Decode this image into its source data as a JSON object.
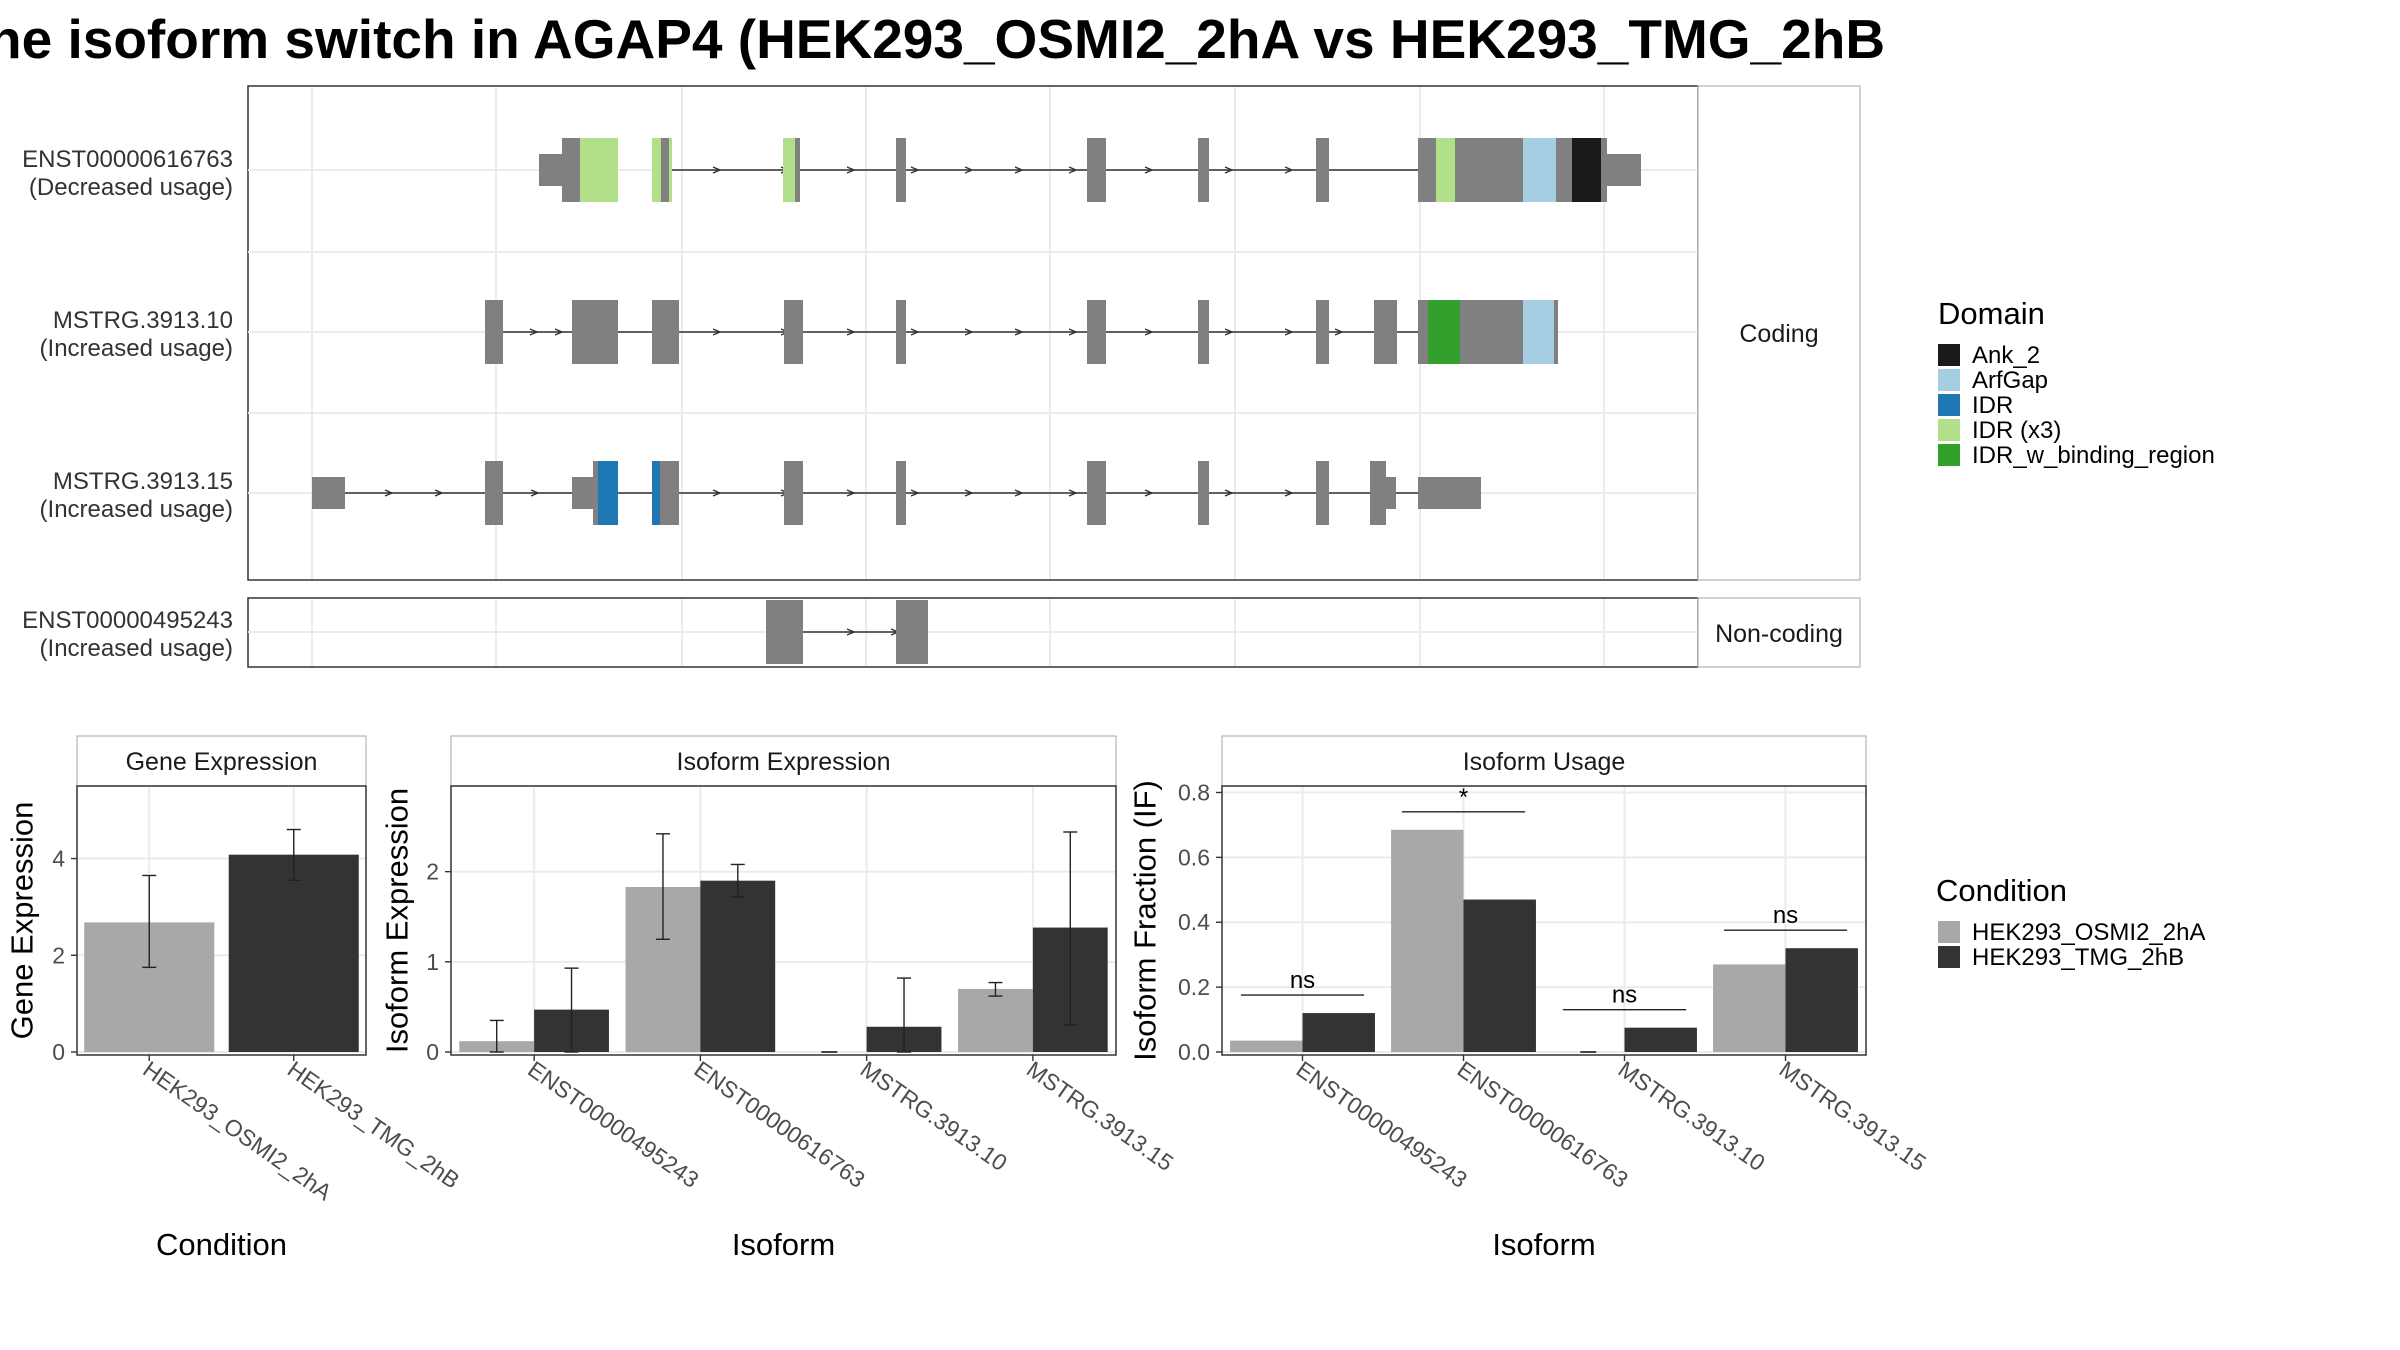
{
  "title": "he isoform switch in AGAP4 (HEK293_OSMI2_2hA vs HEK293_TMG_2hB",
  "colors": {
    "exon": "#808080",
    "Ank_2": "#1a1a1a",
    "ArfGap": "#a6cee3",
    "IDR": "#1f78b4",
    "IDR (x3)": "#b2df8a",
    "IDR_w_binding_region": "#33a02c",
    "HEK293_OSMI2_2hA": "#a8a8a8",
    "HEK293_TMG_2hB": "#333333"
  },
  "structure": {
    "facets": [
      "Coding",
      "Non-coding"
    ],
    "isoforms": [
      {
        "id": "ENST00000616763",
        "usage": "(Decreased usage)",
        "facet": "Coding"
      },
      {
        "id": "MSTRG.3913.10",
        "usage": "(Increased usage)",
        "facet": "Coding"
      },
      {
        "id": "MSTRG.3913.15",
        "usage": "(Increased usage)",
        "facet": "Coding"
      },
      {
        "id": "ENST00000495243",
        "usage": "(Increased usage)",
        "facet": "Non-coding"
      }
    ]
  },
  "legend_domain": {
    "title": "Domain",
    "items": [
      "Ank_2",
      "ArfGap",
      "IDR",
      "IDR (x3)",
      "IDR_w_binding_region"
    ]
  },
  "legend_condition": {
    "title": "Condition",
    "items": [
      "HEK293_OSMI2_2hA",
      "HEK293_TMG_2hB"
    ]
  },
  "chart_data": [
    {
      "type": "bar",
      "title": "Gene Expression",
      "xlabel": "Condition",
      "ylabel": "Gene Expression",
      "categories": [
        "HEK293_OSMI2_2hA",
        "HEK293_TMG_2hB"
      ],
      "values": [
        2.68,
        4.08
      ],
      "error_low": [
        1.75,
        3.55
      ],
      "error_high": [
        3.65,
        4.6
      ],
      "yticks": [
        0,
        2,
        4
      ],
      "ylim": [
        0,
        5.5
      ]
    },
    {
      "type": "bar",
      "title": "Isoform Expression",
      "xlabel": "Isoform",
      "ylabel": "Isoform Expression",
      "categories": [
        "ENST00000495243",
        "ENST00000616763",
        "MSTRG.3913.10",
        "MSTRG.3913.15"
      ],
      "series": [
        {
          "name": "HEK293_OSMI2_2hA",
          "values": [
            0.12,
            1.83,
            0.0,
            0.7
          ],
          "error_low": [
            0.0,
            1.25,
            null,
            0.62
          ],
          "error_high": [
            0.35,
            2.42,
            null,
            0.77
          ]
        },
        {
          "name": "HEK293_TMG_2hB",
          "values": [
            0.47,
            1.9,
            0.28,
            1.38
          ],
          "error_low": [
            0.0,
            1.72,
            0.0,
            0.3
          ],
          "error_high": [
            0.93,
            2.08,
            0.82,
            2.44
          ]
        }
      ],
      "yticks": [
        0,
        1,
        2
      ],
      "ylim": [
        0,
        2.95
      ]
    },
    {
      "type": "bar",
      "title": "Isoform Usage",
      "xlabel": "Isoform",
      "ylabel": "Isoform Fraction (IF)",
      "categories": [
        "ENST00000495243",
        "ENST00000616763",
        "MSTRG.3913.10",
        "MSTRG.3913.15"
      ],
      "series": [
        {
          "name": "HEK293_OSMI2_2hA",
          "values": [
            0.035,
            0.685,
            0.0,
            0.27
          ]
        },
        {
          "name": "HEK293_TMG_2hB",
          "values": [
            0.12,
            0.47,
            0.075,
            0.32
          ]
        }
      ],
      "significance": [
        "ns",
        "*",
        "ns",
        "ns"
      ],
      "yticks": [
        "0.0",
        "0.2",
        "0.4",
        "0.6",
        "0.8"
      ],
      "ylim": [
        0,
        0.82
      ]
    }
  ]
}
